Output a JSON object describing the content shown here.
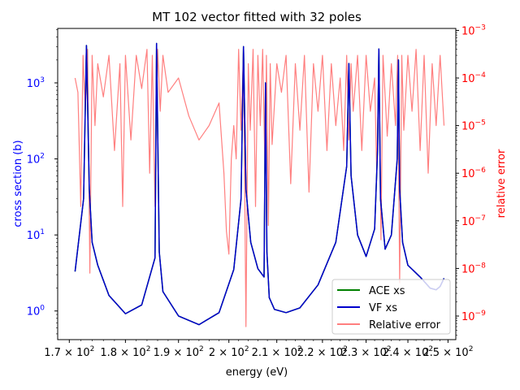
{
  "chart_data": {
    "type": "line",
    "title": "MT 102 vector fitted with 32 poles",
    "xlabel": "energy (eV)",
    "ylabel": "cross section (b)",
    "y2label": "relative error",
    "xlim": [
      168,
      252
    ],
    "xscale": "log",
    "ylim": [
      0.42,
      5200
    ],
    "yscale": "log",
    "y2lim": [
      3.2e-10,
      0.0011
    ],
    "y2scale": "log",
    "x_tick_labels": [
      {
        "value": 170,
        "mantissa": "1.7",
        "exponent": "2"
      },
      {
        "value": 180,
        "mantissa": "1.8",
        "exponent": "2"
      },
      {
        "value": 190,
        "mantissa": "1.9",
        "exponent": "2"
      },
      {
        "value": 200,
        "mantissa": "2",
        "exponent": "2"
      },
      {
        "value": 210,
        "mantissa": "2.1",
        "exponent": "2"
      },
      {
        "value": 220,
        "mantissa": "2.2",
        "exponent": "2"
      },
      {
        "value": 230,
        "mantissa": "2.3",
        "exponent": "2"
      },
      {
        "value": 240,
        "mantissa": "2.4",
        "exponent": "2"
      },
      {
        "value": 250,
        "mantissa": "2.5",
        "exponent": "2"
      }
    ],
    "y_tick_labels": [
      {
        "value": 1,
        "base": "10",
        "exponent": "0"
      },
      {
        "value": 10,
        "base": "10",
        "exponent": "1"
      },
      {
        "value": 100,
        "base": "10",
        "exponent": "2"
      },
      {
        "value": 1000,
        "base": "10",
        "exponent": "3"
      }
    ],
    "y2_tick_labels": [
      {
        "value": 1e-09,
        "base": "10",
        "exponent": "−9"
      },
      {
        "value": 1e-08,
        "base": "10",
        "exponent": "−8"
      },
      {
        "value": 1e-07,
        "base": "10",
        "exponent": "−7"
      },
      {
        "value": 1e-06,
        "base": "10",
        "exponent": "−6"
      },
      {
        "value": 1e-05,
        "base": "10",
        "exponent": "−5"
      },
      {
        "value": 0.0001,
        "base": "10",
        "exponent": "−4"
      },
      {
        "value": 0.001,
        "base": "10",
        "exponent": "−3"
      }
    ],
    "legend": {
      "placement": "lower-right",
      "entries": [
        {
          "label": "ACE xs",
          "color": "#008000"
        },
        {
          "label": "VF xs",
          "color": "#0000cc"
        },
        {
          "label": "Relative error",
          "color": "#ff7f7f"
        }
      ]
    },
    "colors": {
      "left_axis": "#0000ff",
      "right_axis": "#ff0000",
      "ace": "#008000",
      "vf": "#0000cc",
      "error": "#ff7f7f"
    },
    "series": [
      {
        "name": "ACE xs",
        "x": [
          171,
          172.5,
          173.0,
          173.5,
          174.0,
          175,
          177,
          180,
          183,
          185.5,
          185.8,
          186.3,
          187,
          190,
          194,
          198,
          201,
          202.5,
          203.0,
          203.5,
          204.5,
          206,
          207.3,
          207.6,
          207.9,
          208.4,
          209.5,
          212,
          215,
          219,
          223,
          225.5,
          226.0,
          226.5,
          228,
          230,
          232.0,
          232.7,
          233.0,
          233.4,
          234.5,
          236.0,
          237.4,
          237.7,
          238.0,
          238.7,
          240,
          243,
          245.5,
          247,
          248,
          249
        ],
        "y": [
          3.3,
          30,
          3100,
          40,
          8,
          4,
          1.6,
          0.92,
          1.2,
          5,
          3300,
          6,
          1.8,
          0.86,
          0.66,
          0.95,
          3.5,
          30,
          3000,
          40,
          8,
          3.6,
          2.8,
          1000,
          6,
          1.5,
          1.05,
          0.95,
          1.1,
          2.2,
          8,
          80,
          1800,
          60,
          10,
          5.2,
          12,
          130,
          2800,
          30,
          6.5,
          10,
          100,
          2000,
          40,
          8,
          4.0,
          2.8,
          2.0,
          1.9,
          2.1,
          2.7
        ]
      },
      {
        "name": "VF xs",
        "x": [
          171,
          172.5,
          173.0,
          173.5,
          174.0,
          175,
          177,
          180,
          183,
          185.5,
          185.8,
          186.3,
          187,
          190,
          194,
          198,
          201,
          202.5,
          203.0,
          203.5,
          204.5,
          206,
          207.3,
          207.6,
          207.9,
          208.4,
          209.5,
          212,
          215,
          219,
          223,
          225.5,
          226.0,
          226.5,
          228,
          230,
          232.0,
          232.7,
          233.0,
          233.4,
          234.5,
          236.0,
          237.4,
          237.7,
          238.0,
          238.7,
          240,
          243,
          245.5,
          247,
          248,
          249
        ],
        "y": [
          3.3,
          30,
          3100,
          40,
          8,
          4,
          1.6,
          0.92,
          1.2,
          5,
          3300,
          6,
          1.8,
          0.86,
          0.66,
          0.95,
          3.5,
          30,
          3000,
          40,
          8,
          3.6,
          2.8,
          1000,
          6,
          1.5,
          1.05,
          0.95,
          1.1,
          2.2,
          8,
          80,
          1800,
          60,
          10,
          5.2,
          12,
          130,
          2800,
          30,
          6.5,
          10,
          100,
          2000,
          40,
          8,
          4.0,
          2.8,
          2.0,
          1.9,
          2.1,
          2.7
        ]
      },
      {
        "name": "Relative error",
        "x": [
          171,
          171.5,
          172,
          172.4,
          172.8,
          173.2,
          173.6,
          174.0,
          174.5,
          175,
          176,
          177,
          178,
          179,
          179.5,
          180,
          181,
          182,
          183,
          184,
          184.5,
          185,
          185.5,
          186,
          186.5,
          187,
          188,
          190,
          192,
          194,
          196,
          198,
          199,
          199.5,
          200,
          200.5,
          201,
          201.5,
          202,
          202.5,
          203.0,
          203.5,
          204,
          204.4,
          205,
          205.5,
          206,
          206.5,
          207,
          207.5,
          207.8,
          208.2,
          208.6,
          209,
          210,
          211,
          212,
          213,
          214,
          215,
          216,
          217,
          218,
          219,
          220,
          221,
          222,
          223,
          224,
          224.8,
          225.5,
          226,
          226.5,
          227,
          228,
          229,
          230,
          231,
          232,
          232.5,
          233,
          233.5,
          234,
          235,
          236,
          237,
          237.5,
          238,
          238.5,
          239,
          240,
          241,
          242,
          243,
          244,
          245,
          246,
          247,
          248,
          249
        ],
        "y": [
          0.0001,
          5e-05,
          2e-07,
          0.0003,
          2e-05,
          0.0004,
          8e-09,
          0.0003,
          1e-05,
          0.0002,
          4e-05,
          0.0003,
          3e-06,
          0.0002,
          2e-07,
          0.0003,
          5e-06,
          0.0003,
          6e-05,
          0.0004,
          1e-06,
          0.0003,
          2e-07,
          0.0004,
          2e-05,
          0.0003,
          5e-05,
          0.0001,
          1.6e-05,
          5e-06,
          1e-05,
          3e-05,
          1e-06,
          6e-08,
          2e-08,
          2e-06,
          1e-05,
          2e-06,
          0.0004,
          8e-06,
          0.0004,
          6e-10,
          0.0002,
          8e-06,
          0.0004,
          2e-07,
          0.0003,
          1e-05,
          0.0004,
          1e-06,
          0.0003,
          8e-08,
          0.0002,
          4e-06,
          0.0002,
          5e-05,
          0.0003,
          6e-07,
          0.0002,
          8e-06,
          0.0003,
          4e-07,
          0.0002,
          2e-05,
          0.0003,
          3e-06,
          0.0002,
          1e-05,
          0.0001,
          3e-06,
          0.0003,
          5e-06,
          0.0002,
          2e-05,
          0.0003,
          3e-06,
          0.0003,
          2e-05,
          0.0001,
          1e-06,
          0.0003,
          4e-08,
          0.0003,
          6e-06,
          0.0002,
          1e-05,
          0.0003,
          5e-09,
          0.0003,
          8e-06,
          0.0003,
          2e-05,
          0.0004,
          3e-06,
          0.0003,
          1e-06,
          0.0002,
          1e-05,
          0.0003,
          1e-05
        ]
      }
    ]
  }
}
